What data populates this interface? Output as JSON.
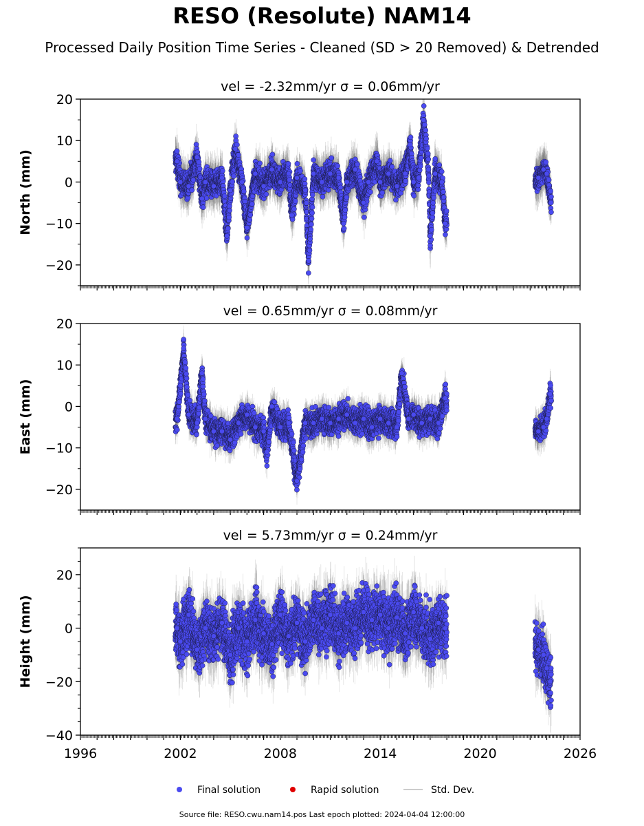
{
  "page": {
    "title": "RESO (Resolute) NAM14",
    "subtitle": "Processed Daily Position Time Series - Cleaned (SD > 20 Removed) & Detrended",
    "source": "Source file: RESO.cwu.nam14.pos  Last epoch plotted: 2024-04-04 12:00:00"
  },
  "legend": {
    "items": [
      {
        "label": "Final solution",
        "color": "#4a4af0",
        "marker": "dot"
      },
      {
        "label": "Rapid solution",
        "color": "#e00000",
        "marker": "dot"
      },
      {
        "label": "Std. Dev.",
        "color": "#cccccc",
        "marker": "line"
      }
    ]
  },
  "chart_data": [
    {
      "type": "scatter",
      "title": "vel = -2.32mm/yr   σ = 0.06mm/yr",
      "ylabel": "North (mm)",
      "xlim": [
        1996,
        2026
      ],
      "ylim": [
        -25,
        20
      ],
      "yticks": [
        -20,
        -10,
        0,
        10,
        20
      ],
      "xticks": [
        1996,
        2002,
        2008,
        2014,
        2020,
        2026
      ],
      "show_xticklabels": false,
      "segments": [
        {
          "x0": 2001.7,
          "x1": 2018.0,
          "spread": 3
        },
        {
          "x0": 2023.3,
          "x1": 2024.27,
          "spread": 2.5
        }
      ],
      "x": [
        2001.8,
        2002.0,
        2002.5,
        2003.0,
        2003.3,
        2003.5,
        2004.0,
        2004.5,
        2004.8,
        2005.0,
        2005.3,
        2005.7,
        2006.0,
        2006.5,
        2007.0,
        2007.5,
        2008.0,
        2008.5,
        2008.7,
        2009.0,
        2009.5,
        2009.7,
        2010.0,
        2010.5,
        2011.0,
        2011.5,
        2011.8,
        2012.0,
        2012.5,
        2013.0,
        2013.3,
        2013.8,
        2014.0,
        2014.5,
        2015.0,
        2015.5,
        2015.8,
        2016.0,
        2016.3,
        2016.6,
        2016.9,
        2017.0,
        2017.3,
        2017.7,
        2017.9,
        2023.5,
        2023.8,
        2024.0,
        2024.25
      ],
      "y": [
        5,
        0,
        -1,
        6,
        -4,
        0,
        -1,
        1,
        -13,
        -2,
        8,
        0,
        -11,
        2,
        -1,
        3,
        0,
        2,
        -8,
        1,
        -2,
        -19,
        2,
        0,
        2,
        1,
        -10,
        0,
        3,
        -5,
        0,
        5,
        0,
        2,
        -1,
        2,
        9,
        0,
        1,
        15,
        3,
        -13,
        2,
        0,
        -10,
        1,
        3,
        2,
        -5
      ],
      "sd": [
        4,
        3,
        3,
        3,
        3,
        3,
        3,
        3,
        4,
        3,
        4,
        3,
        3,
        3,
        3,
        3,
        3,
        3,
        3,
        3,
        3,
        3,
        3,
        3,
        3,
        3,
        3,
        3,
        3,
        3,
        3,
        3,
        3,
        3,
        3,
        3,
        3,
        3,
        3,
        3,
        3,
        3,
        3,
        3,
        3,
        3,
        3,
        3,
        3
      ]
    },
    {
      "type": "scatter",
      "title": "vel = 0.65mm/yr   σ = 0.08mm/yr",
      "ylabel": "East (mm)",
      "xlim": [
        1996,
        2026
      ],
      "ylim": [
        -25,
        20
      ],
      "yticks": [
        -20,
        -10,
        0,
        10,
        20
      ],
      "xticks": [
        1996,
        2002,
        2008,
        2014,
        2020,
        2026
      ],
      "show_xticklabels": false,
      "segments": [
        {
          "x0": 2001.7,
          "x1": 2018.0,
          "spread": 3
        },
        {
          "x0": 2023.3,
          "x1": 2024.27,
          "spread": 2.5
        }
      ],
      "x": [
        2001.8,
        2002.0,
        2002.2,
        2002.5,
        2003.0,
        2003.3,
        2003.5,
        2004.0,
        2004.5,
        2005.0,
        2005.5,
        2006.0,
        2006.5,
        2007.0,
        2007.2,
        2007.5,
        2008.0,
        2008.5,
        2009.0,
        2009.5,
        2010.0,
        2010.5,
        2011.0,
        2011.5,
        2012.0,
        2012.5,
        2013.0,
        2013.5,
        2014.0,
        2014.5,
        2015.0,
        2015.3,
        2015.7,
        2016.0,
        2016.5,
        2017.0,
        2017.5,
        2017.9,
        2023.5,
        2023.8,
        2024.0,
        2024.2
      ],
      "y": [
        -3,
        5,
        14,
        -2,
        -4,
        8,
        -3,
        -6,
        -6,
        -8,
        -4,
        -2,
        -5,
        -6,
        -11,
        0,
        -5,
        -4,
        -18,
        -4,
        -4,
        -3,
        -4,
        -3,
        -2,
        -4,
        -3,
        -5,
        -3,
        -4,
        -5,
        8,
        -3,
        -2,
        -4,
        -3,
        -4,
        2,
        -6,
        -5,
        -3,
        3
      ],
      "sd": [
        3,
        3,
        3,
        3,
        3,
        3,
        3,
        3,
        3,
        3,
        3,
        3,
        3,
        3,
        3,
        3,
        3,
        3,
        3,
        3,
        3,
        3,
        3,
        3,
        3,
        3,
        3,
        3,
        3,
        3,
        3,
        3,
        3,
        3,
        3,
        3,
        3,
        3,
        3,
        3,
        3,
        3
      ]
    },
    {
      "type": "scatter",
      "title": "vel = 5.73mm/yr   σ = 0.24mm/yr",
      "ylabel": "Height (mm)",
      "xlim": [
        1996,
        2026
      ],
      "ylim": [
        -40,
        30
      ],
      "yticks": [
        -40,
        -20,
        0,
        20
      ],
      "xticks": [
        1996,
        2002,
        2008,
        2014,
        2020,
        2026
      ],
      "show_xticklabels": true,
      "segments": [
        {
          "x0": 2001.7,
          "x1": 2018.0,
          "spread": 10
        },
        {
          "x0": 2023.3,
          "x1": 2024.27,
          "spread": 9
        }
      ],
      "x": [
        2001.8,
        2002.0,
        2002.5,
        2003.0,
        2003.5,
        2004.0,
        2004.5,
        2005.0,
        2005.5,
        2006.0,
        2006.5,
        2007.0,
        2007.5,
        2008.0,
        2008.5,
        2009.0,
        2009.5,
        2010.0,
        2010.5,
        2011.0,
        2011.5,
        2012.0,
        2012.5,
        2013.0,
        2013.5,
        2014.0,
        2014.5,
        2015.0,
        2015.5,
        2016.0,
        2016.5,
        2017.0,
        2017.5,
        2017.9,
        2023.5,
        2023.8,
        2024.0,
        2024.2
      ],
      "y": [
        0,
        -5,
        5,
        -8,
        0,
        -3,
        2,
        -10,
        0,
        -5,
        3,
        -2,
        -6,
        5,
        -3,
        2,
        -5,
        3,
        0,
        5,
        -2,
        2,
        0,
        6,
        3,
        5,
        0,
        4,
        -2,
        6,
        0,
        -4,
        2,
        0,
        -8,
        -10,
        -15,
        -20
      ],
      "sd": [
        8,
        8,
        7,
        7,
        7,
        7,
        7,
        7,
        7,
        7,
        7,
        7,
        7,
        7,
        7,
        7,
        7,
        7,
        7,
        7,
        7,
        7,
        7,
        7,
        7,
        7,
        7,
        7,
        7,
        7,
        7,
        7,
        7,
        7,
        7,
        7,
        7,
        7
      ]
    }
  ]
}
